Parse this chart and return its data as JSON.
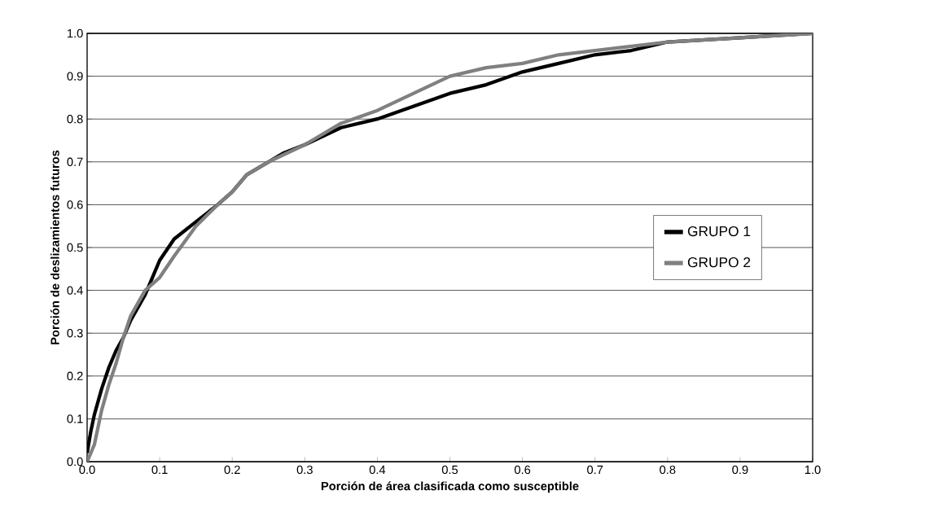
{
  "chart_data": {
    "type": "line",
    "xlabel": "Porción de área clasificada como susceptible",
    "ylabel": "Porción de deslizamientos futuros",
    "xlim": [
      0,
      1
    ],
    "ylim": [
      0,
      1
    ],
    "xticks": [
      {
        "value": 0,
        "label": "0.0"
      },
      0.1,
      0.2,
      0.3,
      0.4,
      0.5,
      0.6,
      0.7,
      0.8,
      0.9,
      {
        "value": 1,
        "label": "1.0"
      }
    ],
    "yticks": [
      {
        "value": 0,
        "label": "0.0"
      },
      0.1,
      0.2,
      0.3,
      0.4,
      0.5,
      0.6,
      0.7,
      0.8,
      0.9,
      {
        "value": 1,
        "label": "1.0"
      }
    ],
    "grid": "y",
    "legend": "right",
    "marker": "none",
    "line_style": "solid",
    "series": [
      {
        "name": "GRUPO 1",
        "color": "#000000",
        "x": [
          0,
          0.005,
          0.01,
          0.02,
          0.03,
          0.04,
          0.05,
          0.06,
          0.07,
          0.08,
          0.09,
          0.1,
          0.12,
          0.15,
          0.18,
          0.2,
          0.22,
          0.25,
          0.27,
          0.3,
          0.35,
          0.4,
          0.45,
          0.5,
          0.55,
          0.6,
          0.65,
          0.7,
          0.75,
          0.8,
          0.9,
          1.0
        ],
        "values": [
          0.02,
          0.07,
          0.11,
          0.17,
          0.22,
          0.26,
          0.29,
          0.33,
          0.36,
          0.39,
          0.43,
          0.47,
          0.52,
          0.56,
          0.6,
          0.63,
          0.67,
          0.7,
          0.72,
          0.74,
          0.78,
          0.8,
          0.83,
          0.86,
          0.88,
          0.91,
          0.93,
          0.95,
          0.96,
          0.98,
          0.99,
          1.0
        ]
      },
      {
        "name": "GRUPO 2",
        "color": "#808080",
        "x": [
          0,
          0.01,
          0.02,
          0.03,
          0.04,
          0.05,
          0.06,
          0.07,
          0.08,
          0.1,
          0.12,
          0.15,
          0.18,
          0.2,
          0.22,
          0.25,
          0.3,
          0.35,
          0.4,
          0.45,
          0.5,
          0.55,
          0.6,
          0.65,
          0.7,
          0.75,
          0.8,
          0.9,
          1.0
        ],
        "values": [
          0.0,
          0.04,
          0.12,
          0.18,
          0.23,
          0.29,
          0.34,
          0.37,
          0.4,
          0.43,
          0.48,
          0.55,
          0.6,
          0.63,
          0.67,
          0.7,
          0.74,
          0.79,
          0.82,
          0.86,
          0.9,
          0.92,
          0.93,
          0.95,
          0.96,
          0.97,
          0.98,
          0.99,
          1.0
        ]
      }
    ]
  }
}
